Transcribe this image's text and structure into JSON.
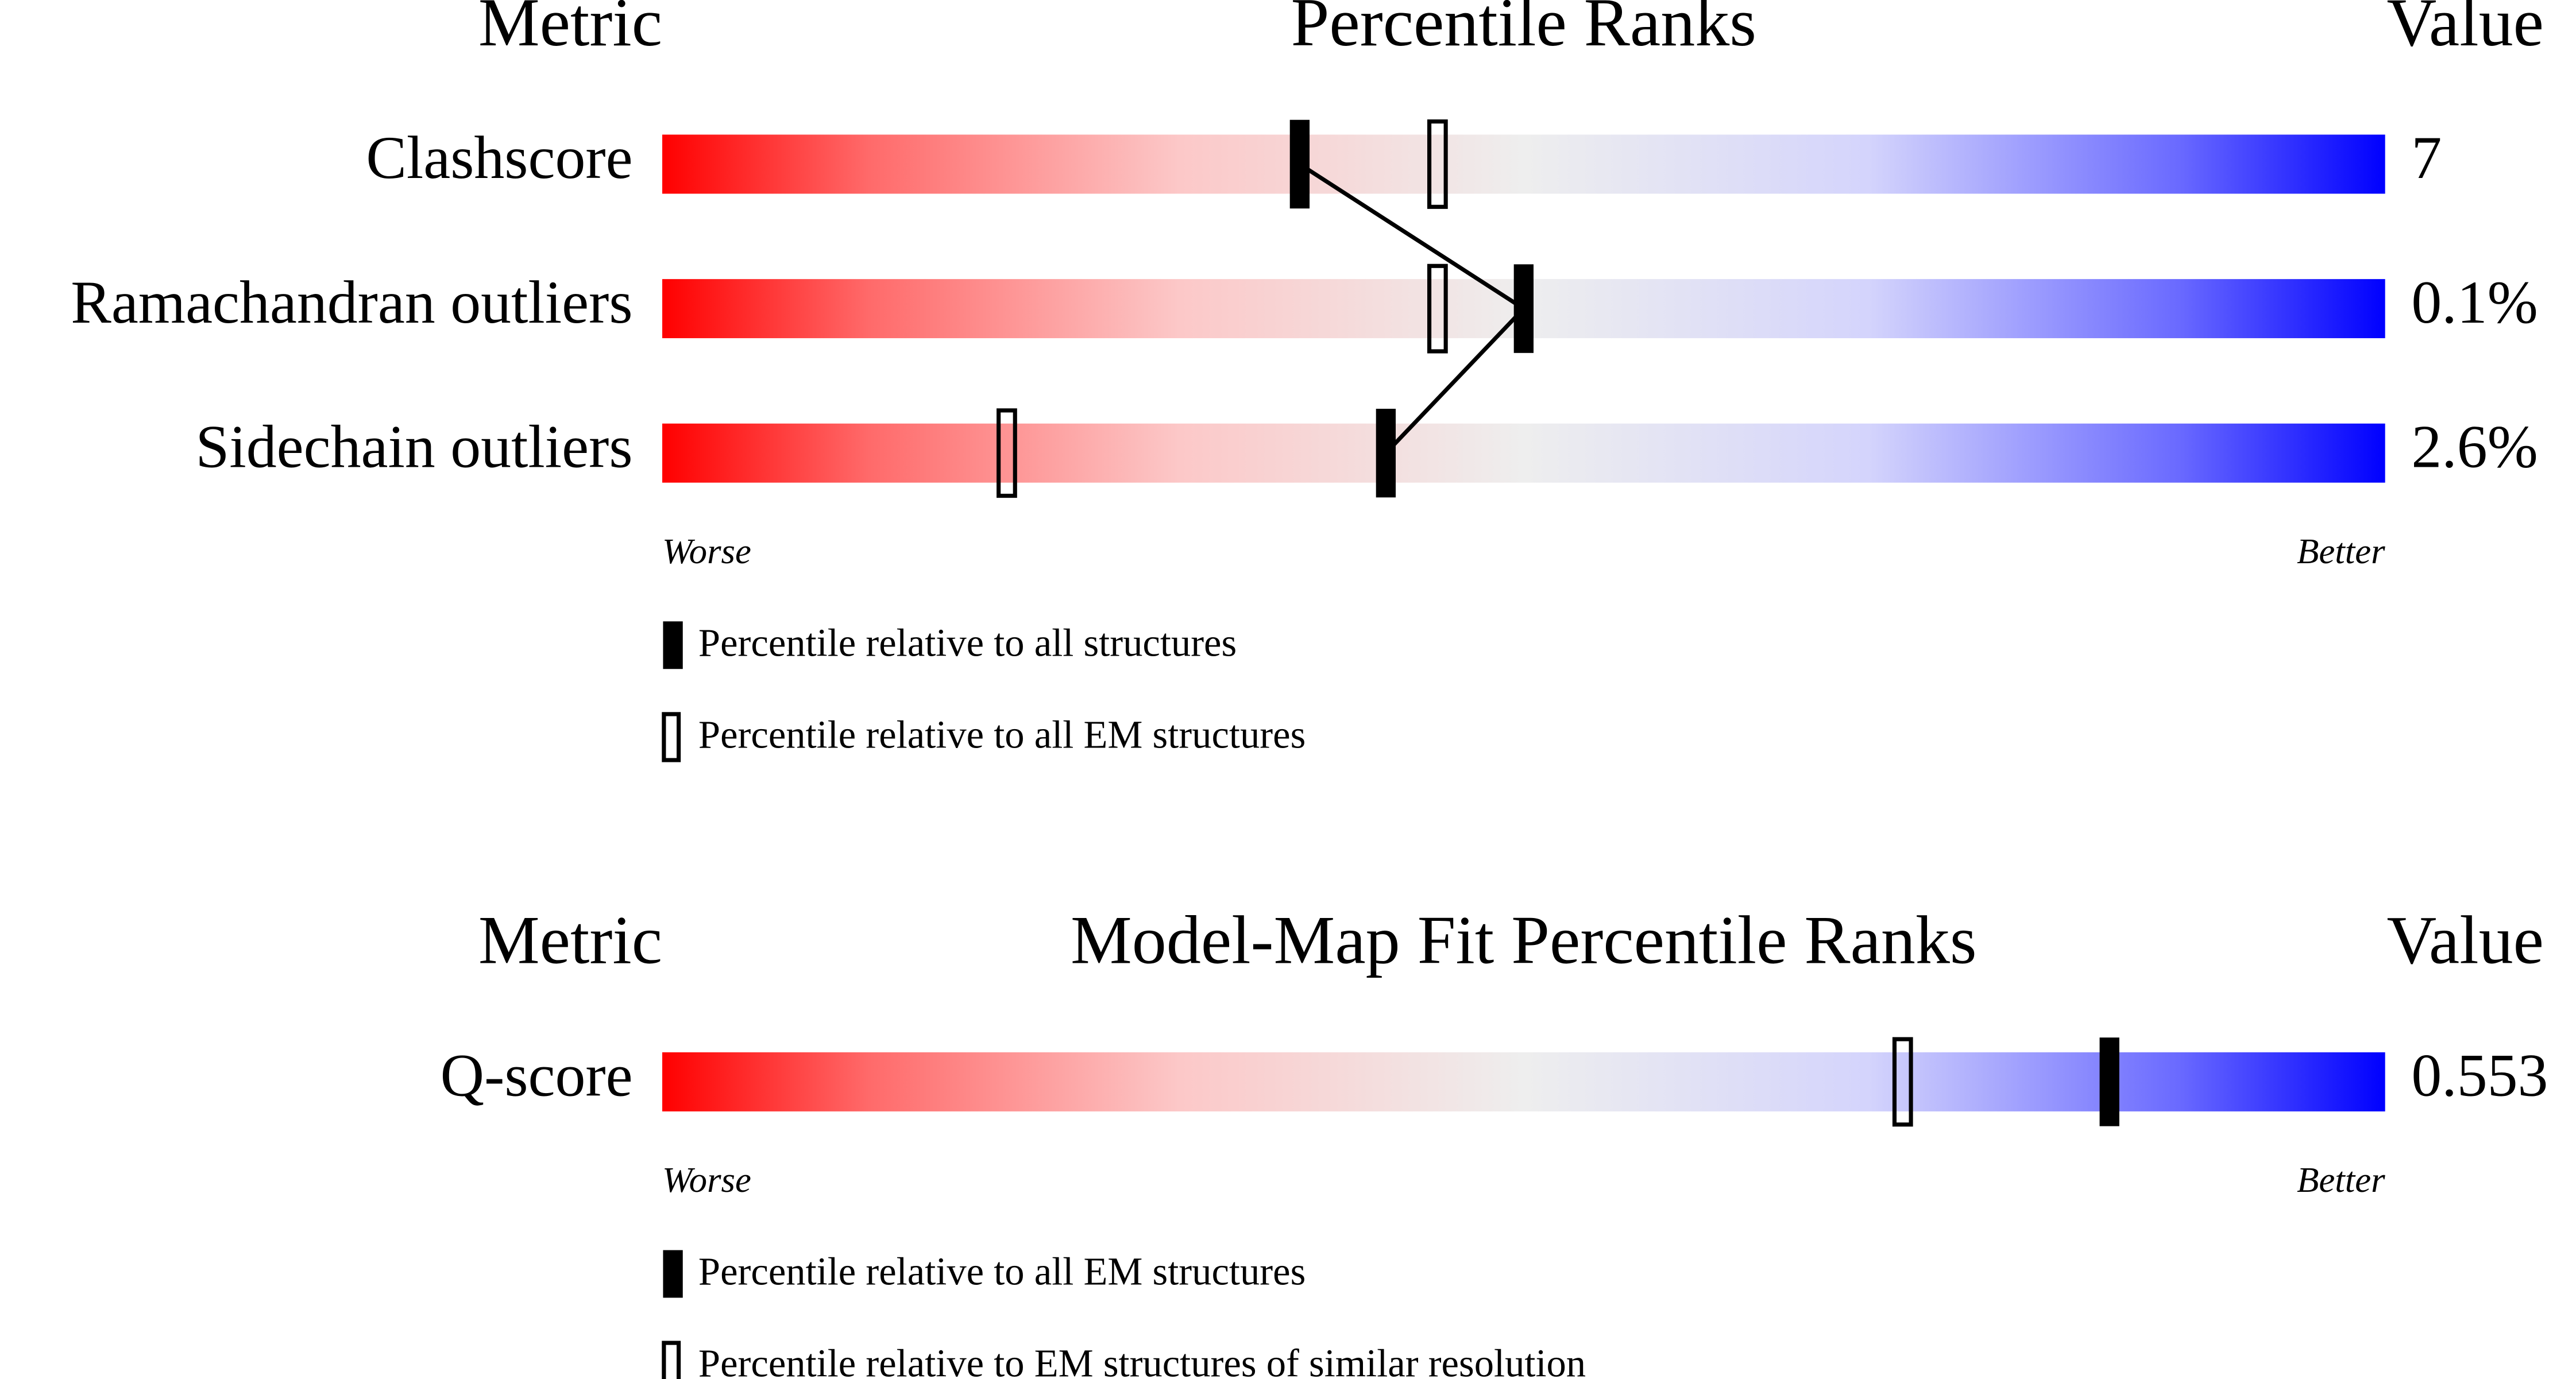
{
  "chart_data": [
    {
      "type": "percentile",
      "title": "Percentile Ranks",
      "metric_header": "Metric",
      "value_header": "Value",
      "categories": [
        "Clashscore",
        "Ramachandran outliers",
        "Sidechain outliers"
      ],
      "metric_values": [
        "7",
        "0.1%",
        "2.6%"
      ],
      "series": [
        {
          "name": "Percentile relative to all structures",
          "color": "#000000",
          "marker": "filled",
          "values": [
            37,
            50,
            42
          ]
        },
        {
          "name": "Percentile relative to all EM structures",
          "color": "#000000",
          "marker": "hollow",
          "values": [
            45,
            45,
            20
          ]
        }
      ],
      "xlim": [
        0,
        100
      ],
      "low_label": "Worse",
      "high_label": "Better",
      "connect_series": 0
    },
    {
      "type": "percentile",
      "title": "Model-Map Fit Percentile Ranks",
      "metric_header": "Metric",
      "value_header": "Value",
      "categories": [
        "Q-score"
      ],
      "metric_values": [
        "0.553"
      ],
      "series": [
        {
          "name": "Percentile relative to all EM structures",
          "color": "#000000",
          "marker": "filled",
          "values": [
            84
          ]
        },
        {
          "name": "Percentile relative to EM structures of similar resolution",
          "color": "#000000",
          "marker": "hollow",
          "values": [
            72
          ]
        }
      ],
      "xlim": [
        0,
        100
      ],
      "low_label": "Worse",
      "high_label": "Better"
    }
  ]
}
